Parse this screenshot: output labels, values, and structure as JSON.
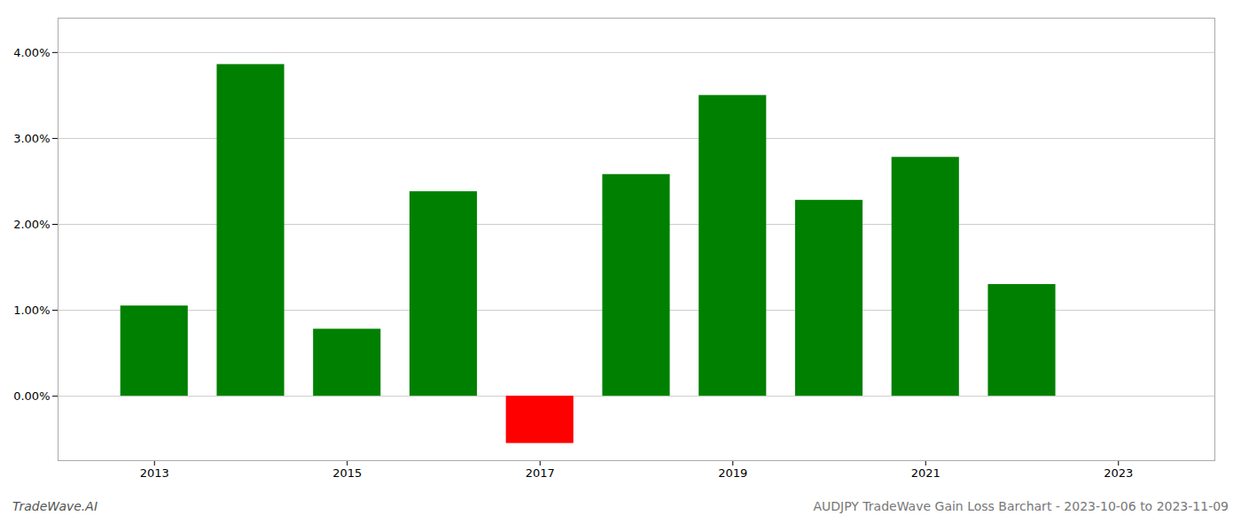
{
  "chart_data": {
    "type": "bar",
    "x": [
      2013,
      2014,
      2015,
      2016,
      2017,
      2018,
      2019,
      2020,
      2021,
      2022
    ],
    "values": [
      1.05,
      3.86,
      0.78,
      2.38,
      -0.55,
      2.58,
      3.5,
      2.28,
      2.78,
      1.3
    ],
    "colors": [
      "#008000",
      "#008000",
      "#008000",
      "#008000",
      "#ff0000",
      "#008000",
      "#008000",
      "#008000",
      "#008000",
      "#008000"
    ],
    "xlim": [
      2012.0,
      2024.0
    ],
    "xticks": [
      2013,
      2015,
      2017,
      2019,
      2021,
      2023
    ],
    "ylim": [
      -0.75,
      4.4
    ],
    "yticks": [
      {
        "value": 0.0,
        "label": "0.00%"
      },
      {
        "value": 1.0,
        "label": "1.00%"
      },
      {
        "value": 2.0,
        "label": "2.00%"
      },
      {
        "value": 3.0,
        "label": "3.00%"
      },
      {
        "value": 4.0,
        "label": "4.00%"
      }
    ],
    "grid": true,
    "annotations": [
      "TradeWave.AI",
      "AUDJPY TradeWave Gain Loss Barchart - 2023-10-06 to 2023-11-09"
    ]
  }
}
